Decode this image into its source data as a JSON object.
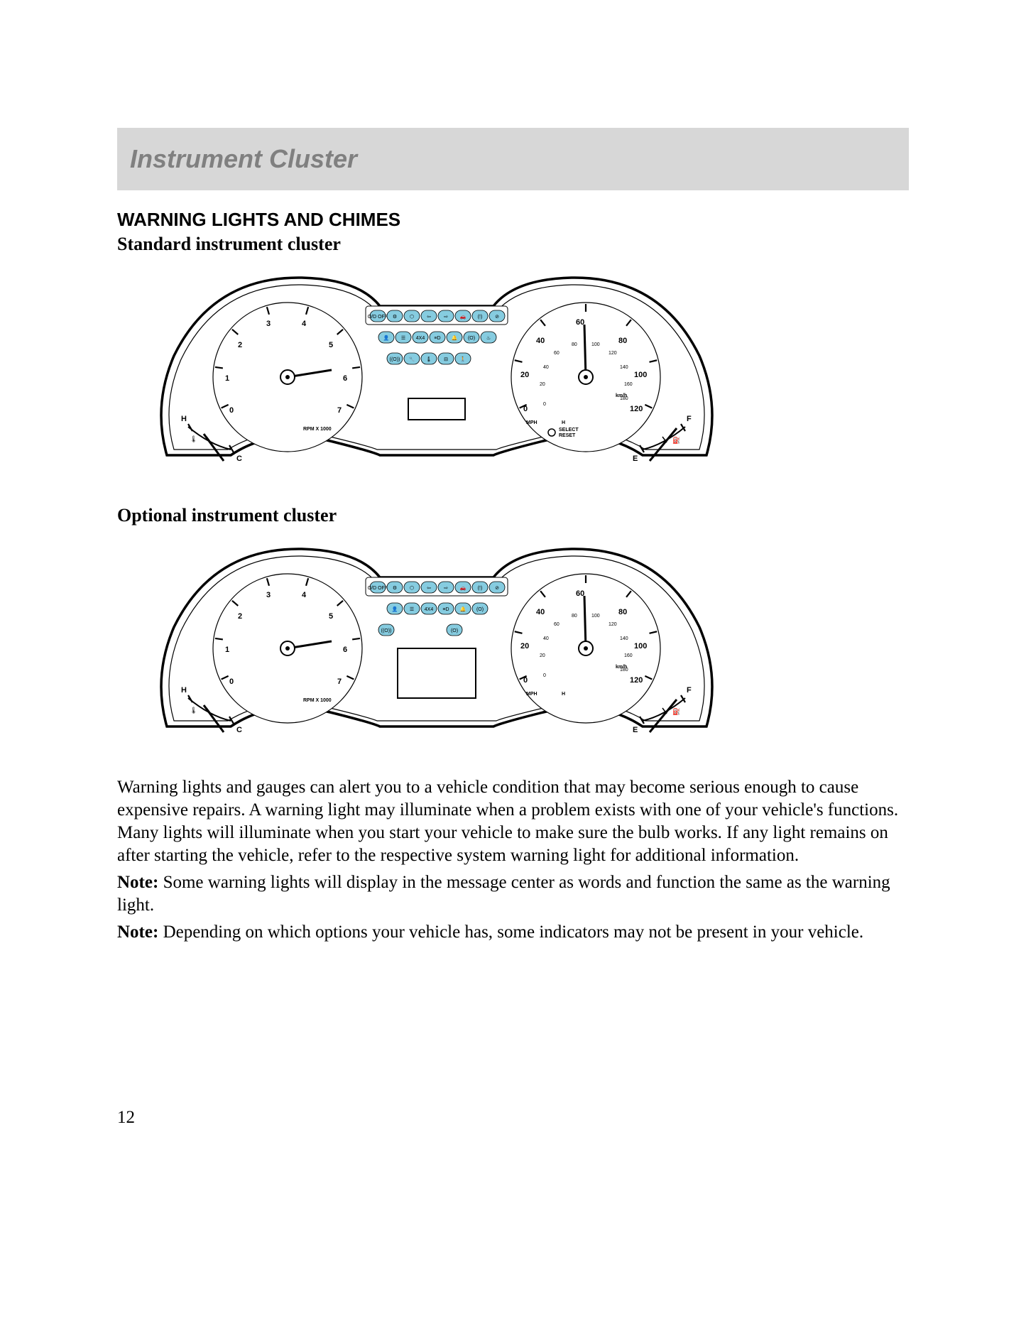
{
  "header": {
    "title": "Instrument Cluster"
  },
  "section": {
    "heading": "WARNING LIGHTS AND CHIMES"
  },
  "cluster_standard": {
    "label": "Standard instrument cluster"
  },
  "cluster_optional": {
    "label": "Optional instrument cluster"
  },
  "tachometer": {
    "labels": [
      "0",
      "1",
      "2",
      "3",
      "4",
      "5",
      "6",
      "7"
    ],
    "unit": "RPM X 1000",
    "temp_labels": [
      "H",
      "C"
    ]
  },
  "speedometer": {
    "mph_labels": [
      "0",
      "20",
      "40",
      "60",
      "80",
      "100",
      "120"
    ],
    "kmh_labels": [
      "0",
      "20",
      "40",
      "60",
      "80",
      "100",
      "120",
      "140",
      "160",
      "180"
    ],
    "mph_unit": "MPH",
    "kmh_unit": "km/h",
    "h_label": "H",
    "select_reset": "SELECT\nRESET",
    "fuel_labels": [
      "F",
      "E"
    ]
  },
  "warning_rows_standard": [
    [
      "O/D OFF",
      "⚙",
      "⬡",
      "⇦",
      "⇨",
      "🚗",
      "(!)",
      "⊘"
    ],
    [
      "👤",
      "☰",
      "4X4",
      "≡D",
      "🔔",
      "(O)",
      "♨"
    ],
    [
      "((O))",
      "🔧",
      "🌡",
      "⊟",
      "🚶"
    ]
  ],
  "warning_rows_optional": [
    [
      "O/D OFF",
      "⚙",
      "⬡",
      "⇦",
      "⇨",
      "🚗",
      "(!)",
      "⊘"
    ],
    [
      "👤",
      "☰",
      "4X4",
      "≡D",
      "🔔",
      "(O)"
    ],
    [
      "((O))",
      "",
      "",
      "",
      "(O)"
    ]
  ],
  "paragraphs": {
    "p1": "Warning lights and gauges can alert you to a vehicle condition that may become serious enough to cause expensive repairs. A warning light may illuminate when a problem exists with one of your vehicle's functions. Many lights will illuminate when you start your vehicle to make sure the bulb works. If any light remains on after starting the vehicle, refer to the respective system warning light for additional information.",
    "note1_label": "Note:",
    "note1_text": " Some warning lights will display in the message center as words and function the same as the warning light.",
    "note2_label": "Note:",
    "note2_text": " Depending on which options your vehicle has, some indicators may not be present in your vehicle."
  },
  "page_number": "12",
  "colors": {
    "header_band": "#d7d7d7",
    "header_text": "#808080",
    "warn_pill": "#86cce0",
    "outline": "#000000",
    "background": "#ffffff"
  }
}
